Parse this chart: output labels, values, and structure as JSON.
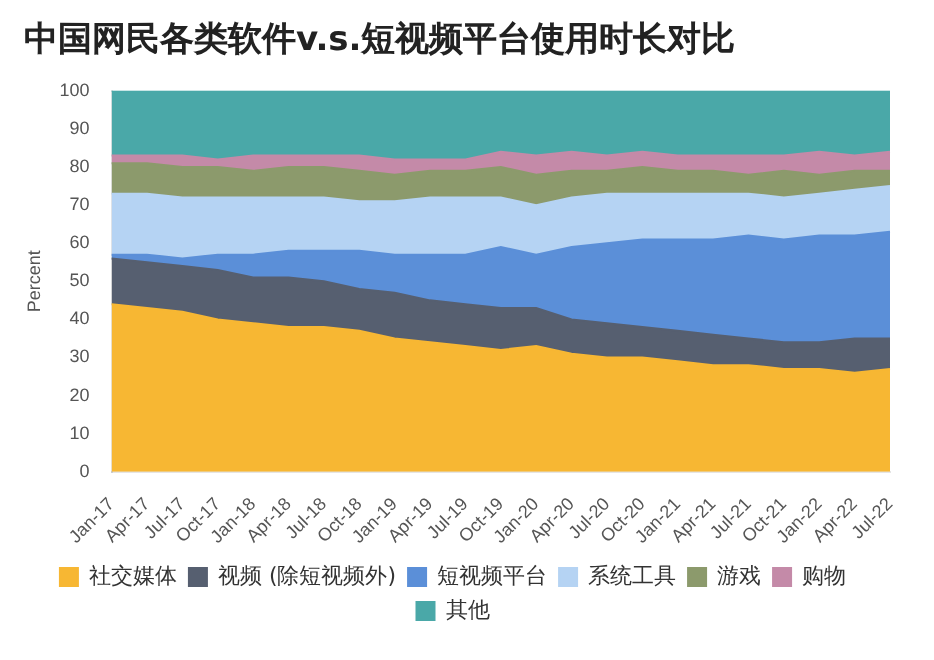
{
  "chart_data": {
    "type": "area",
    "title": "中国网民各类软件v.s.短视频平台使用时长对比",
    "ylabel": "Percent",
    "stacked": true,
    "grid": false,
    "legend": "bottom",
    "ylim": [
      0,
      100
    ],
    "yticks": [
      0,
      10,
      20,
      30,
      40,
      50,
      60,
      70,
      80,
      90,
      100
    ],
    "categories": [
      "Jan-17",
      "Apr-17",
      "Jul-17",
      "Oct-17",
      "Jan-18",
      "Apr-18",
      "Jul-18",
      "Oct-18",
      "Jan-19",
      "Apr-19",
      "Jul-19",
      "Oct-19",
      "Jan-20",
      "Apr-20",
      "Jul-20",
      "Oct-20",
      "Jan-21",
      "Apr-21",
      "Jul-21",
      "Oct-21",
      "Jan-22",
      "Apr-22",
      "Jul-22"
    ],
    "series": [
      {
        "name": "社交媒体",
        "color": "#f7b733",
        "values": [
          44,
          43,
          42,
          40,
          39,
          38,
          38,
          37,
          35,
          34,
          33,
          32,
          33,
          31,
          30,
          30,
          29,
          28,
          28,
          27,
          27,
          26,
          27
        ]
      },
      {
        "name": "视频 (除短视频外)",
        "color": "#565f70",
        "values": [
          12,
          12,
          12,
          13,
          12,
          13,
          12,
          11,
          12,
          11,
          11,
          11,
          10,
          9,
          9,
          8,
          8,
          8,
          7,
          7,
          7,
          9,
          8
        ]
      },
      {
        "name": "短视频平台",
        "color": "#5b8fd8",
        "values": [
          1,
          2,
          2,
          4,
          6,
          7,
          8,
          10,
          10,
          12,
          13,
          16,
          14,
          19,
          21,
          23,
          24,
          25,
          27,
          27,
          28,
          27,
          28
        ]
      },
      {
        "name": "系统工具",
        "color": "#b5d3f3",
        "values": [
          16,
          16,
          16,
          15,
          15,
          14,
          14,
          13,
          14,
          15,
          15,
          13,
          13,
          13,
          13,
          12,
          12,
          12,
          11,
          11,
          11,
          12,
          12
        ]
      },
      {
        "name": "游戏",
        "color": "#8c9a6c",
        "values": [
          8,
          8,
          8,
          8,
          7,
          8,
          8,
          8,
          7,
          7,
          7,
          8,
          8,
          7,
          6,
          7,
          6,
          6,
          5,
          7,
          5,
          5,
          4
        ]
      },
      {
        "name": "购物",
        "color": "#c48aa8",
        "values": [
          2,
          2,
          3,
          2,
          4,
          3,
          3,
          4,
          4,
          3,
          3,
          4,
          5,
          5,
          4,
          4,
          4,
          4,
          5,
          4,
          6,
          4,
          5
        ]
      },
      {
        "name": "其他",
        "color": "#4aa8a8",
        "values": [
          17,
          17,
          17,
          18,
          17,
          17,
          17,
          17,
          18,
          18,
          18,
          16,
          17,
          16,
          17,
          16,
          17,
          17,
          17,
          17,
          16,
          17,
          16
        ]
      }
    ]
  }
}
